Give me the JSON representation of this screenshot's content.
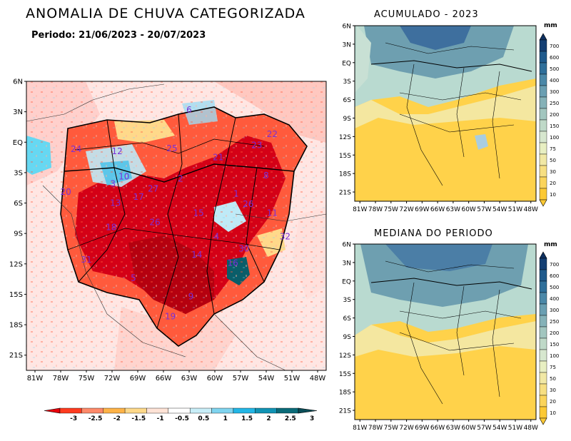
{
  "header": {
    "title": "ANOMALIA DE CHUVA CATEGORIZADA",
    "period": "Periodo: 21/06/2023 - 20/07/2023"
  },
  "main_map": {
    "lat_ticks": [
      "6N",
      "3N",
      "EQ",
      "3S",
      "6S",
      "9S",
      "12S",
      "15S",
      "18S",
      "21S"
    ],
    "lon_ticks": [
      "81W",
      "78W",
      "75W",
      "72W",
      "69W",
      "66W",
      "63W",
      "60W",
      "57W",
      "54W",
      "51W",
      "48W"
    ],
    "basin_labels": [
      {
        "id": "24",
        "lon": -76.2,
        "lat": -0.7
      },
      {
        "id": "12",
        "lon": -71.4,
        "lat": -0.9
      },
      {
        "id": "25",
        "lon": -65.0,
        "lat": -0.6
      },
      {
        "id": "6",
        "lon": -63.0,
        "lat": 3.2
      },
      {
        "id": "23",
        "lon": -55.1,
        "lat": -0.3
      },
      {
        "id": "22",
        "lon": -53.3,
        "lat": 0.8
      },
      {
        "id": "21",
        "lon": -59.6,
        "lat": -1.5
      },
      {
        "id": "10",
        "lon": -70.6,
        "lat": -3.4
      },
      {
        "id": "3",
        "lon": -71.9,
        "lat": -4.1
      },
      {
        "id": "2",
        "lon": -64.0,
        "lat": -3.6
      },
      {
        "id": "8",
        "lon": -54.0,
        "lat": -3.3
      },
      {
        "id": "20",
        "lon": -77.4,
        "lat": -4.9
      },
      {
        "id": "27",
        "lon": -67.2,
        "lat": -4.6
      },
      {
        "id": "17",
        "lon": -68.9,
        "lat": -5.4
      },
      {
        "id": "13",
        "lon": -71.6,
        "lat": -6.0
      },
      {
        "id": "1",
        "lon": -57.5,
        "lat": -5.1
      },
      {
        "id": "26",
        "lon": -56.1,
        "lat": -6.1
      },
      {
        "id": "11",
        "lon": -53.3,
        "lat": -7.0
      },
      {
        "id": "15",
        "lon": -61.9,
        "lat": -7.0
      },
      {
        "id": "26",
        "lon": -67.0,
        "lat": -7.9
      },
      {
        "id": "18",
        "lon": -72.1,
        "lat": -8.4
      },
      {
        "id": "4",
        "lon": -59.8,
        "lat": -9.3
      },
      {
        "id": "32",
        "lon": -51.8,
        "lat": -9.3
      },
      {
        "id": "30",
        "lon": -56.6,
        "lat": -10.5
      },
      {
        "id": "31",
        "lon": -75.0,
        "lat": -11.6
      },
      {
        "id": "14",
        "lon": -62.1,
        "lat": -11.1
      },
      {
        "id": "16",
        "lon": -57.9,
        "lat": -11.9
      },
      {
        "id": "5",
        "lon": -69.5,
        "lat": -13.4
      },
      {
        "id": "9",
        "lon": -62.8,
        "lat": -15.2
      },
      {
        "id": "19",
        "lon": -65.2,
        "lat": -17.2
      }
    ]
  },
  "acumulado": {
    "title": "ACUMULADO - 2023"
  },
  "mediana": {
    "title": "MEDIANA DO PERIODO"
  },
  "small_lat_ticks": [
    "6N",
    "3N",
    "EQ",
    "3S",
    "6S",
    "9S",
    "12S",
    "15S",
    "18S",
    "21S"
  ],
  "small_lon_ticks": [
    "81W",
    "78W",
    "75W",
    "72W",
    "69W",
    "66W",
    "63W",
    "60W",
    "57W",
    "54W",
    "51W",
    "48W"
  ],
  "precip_scale": {
    "units": "mm",
    "levels": [
      "700",
      "600",
      "500",
      "400",
      "300",
      "250",
      "200",
      "150",
      "100",
      "75",
      "50",
      "30",
      "20",
      "10"
    ]
  },
  "anomaly_scale": {
    "labels": [
      "-3",
      "-2.5",
      "-2",
      "-1.5",
      "-1",
      "-0.5",
      "0.5",
      "1",
      "1.5",
      "2",
      "2.5",
      "3"
    ],
    "colors": [
      "#e8000b",
      "#ff3b1f",
      "#ff8a6a",
      "#ffb347",
      "#ffd98a",
      "#ffe3d6",
      "#ffffff",
      "#c8eef8",
      "#7fd4ef",
      "#22b6e6",
      "#1193b4",
      "#0a6b78",
      "#0a4d57"
    ]
  }
}
